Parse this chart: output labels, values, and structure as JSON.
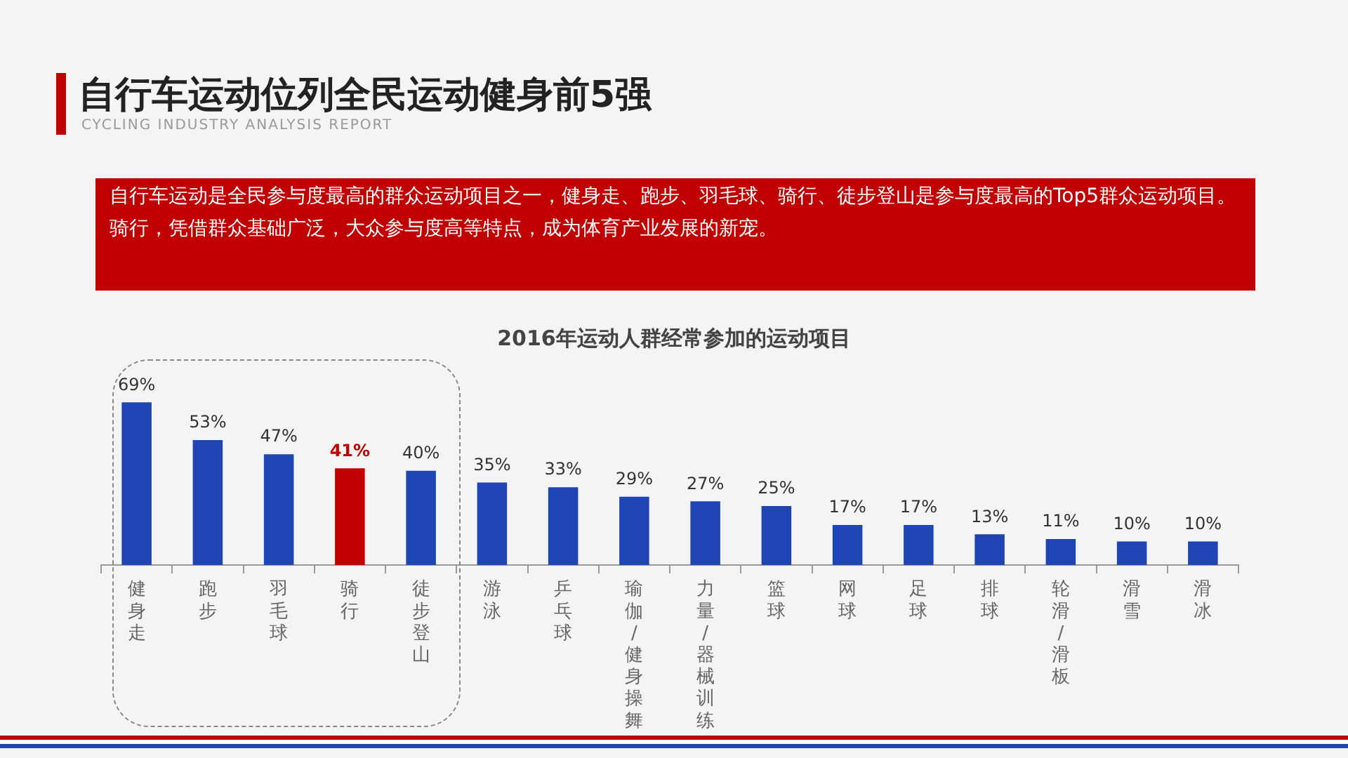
{
  "chart_data": {
    "type": "bar",
    "title": "自行车运动位列全民运动健身前5强",
    "subtitle": "CYCLING INDUSTRY ANALYSIS REPORT",
    "annotations": [
      "自行车运动是全民参与度最高的群众运动项目之一，健身走、跑步、羽毛球、骑行、徒步登山是参与度最高的Top5群众运动项目。",
      "骑行，凭借群众基础广泛，大众参与度高等特点，成为体育产业发展的新宠。",
      "2016年运动人群经常参加的运动项目"
    ],
    "categories": [
      "健身走",
      "跑步",
      "羽毛球",
      "骑行",
      "徒步登山",
      "游泳",
      "乒乓球",
      "瑜伽/健身操舞",
      "力量/器械训练",
      "篮球",
      "网球",
      "足球",
      "排球",
      "轮滑/滑板",
      "滑雪",
      "滑冰"
    ],
    "values": [
      69,
      53,
      47,
      41,
      40,
      35,
      33,
      29,
      27,
      25,
      17,
      17,
      13,
      11,
      10,
      10
    ],
    "colors": [
      "#1f45b5",
      "#1f45b5",
      "#1f45b5",
      "#c00000",
      "#1f45b5",
      "#1f45b5",
      "#1f45b5",
      "#1f45b5",
      "#1f45b5",
      "#1f45b5",
      "#1f45b5",
      "#1f45b5",
      "#1f45b5",
      "#1f45b5",
      "#1f45b5",
      "#1f45b5"
    ],
    "value_labels": [
      "69%",
      "53%",
      "47%",
      "41%",
      "40%",
      "35%",
      "33%",
      "29%",
      "27%",
      "25%",
      "17%",
      "17%",
      "13%",
      "11%",
      "10%",
      "10%"
    ],
    "grid": false,
    "legend": false,
    "tick_labels": "x"
  }
}
